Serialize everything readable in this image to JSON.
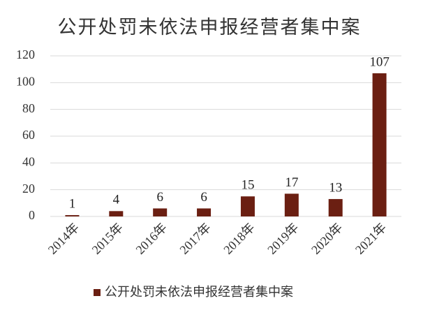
{
  "chart_data": {
    "type": "bar",
    "title": "公开处罚未依法申报经营者集中案",
    "categories": [
      "2014年",
      "2015年",
      "2016年",
      "2017年",
      "2018年",
      "2019年",
      "2020年",
      "2021年"
    ],
    "series": [
      {
        "name": "公开处罚未依法申报经营者集中案",
        "color": "#6b1f12",
        "values": [
          1,
          4,
          6,
          6,
          15,
          17,
          13,
          107
        ]
      }
    ],
    "ylim": [
      0,
      120
    ],
    "yticks": [
      0,
      20,
      40,
      60,
      80,
      100,
      120
    ],
    "grid": true,
    "legend": "bottom"
  }
}
